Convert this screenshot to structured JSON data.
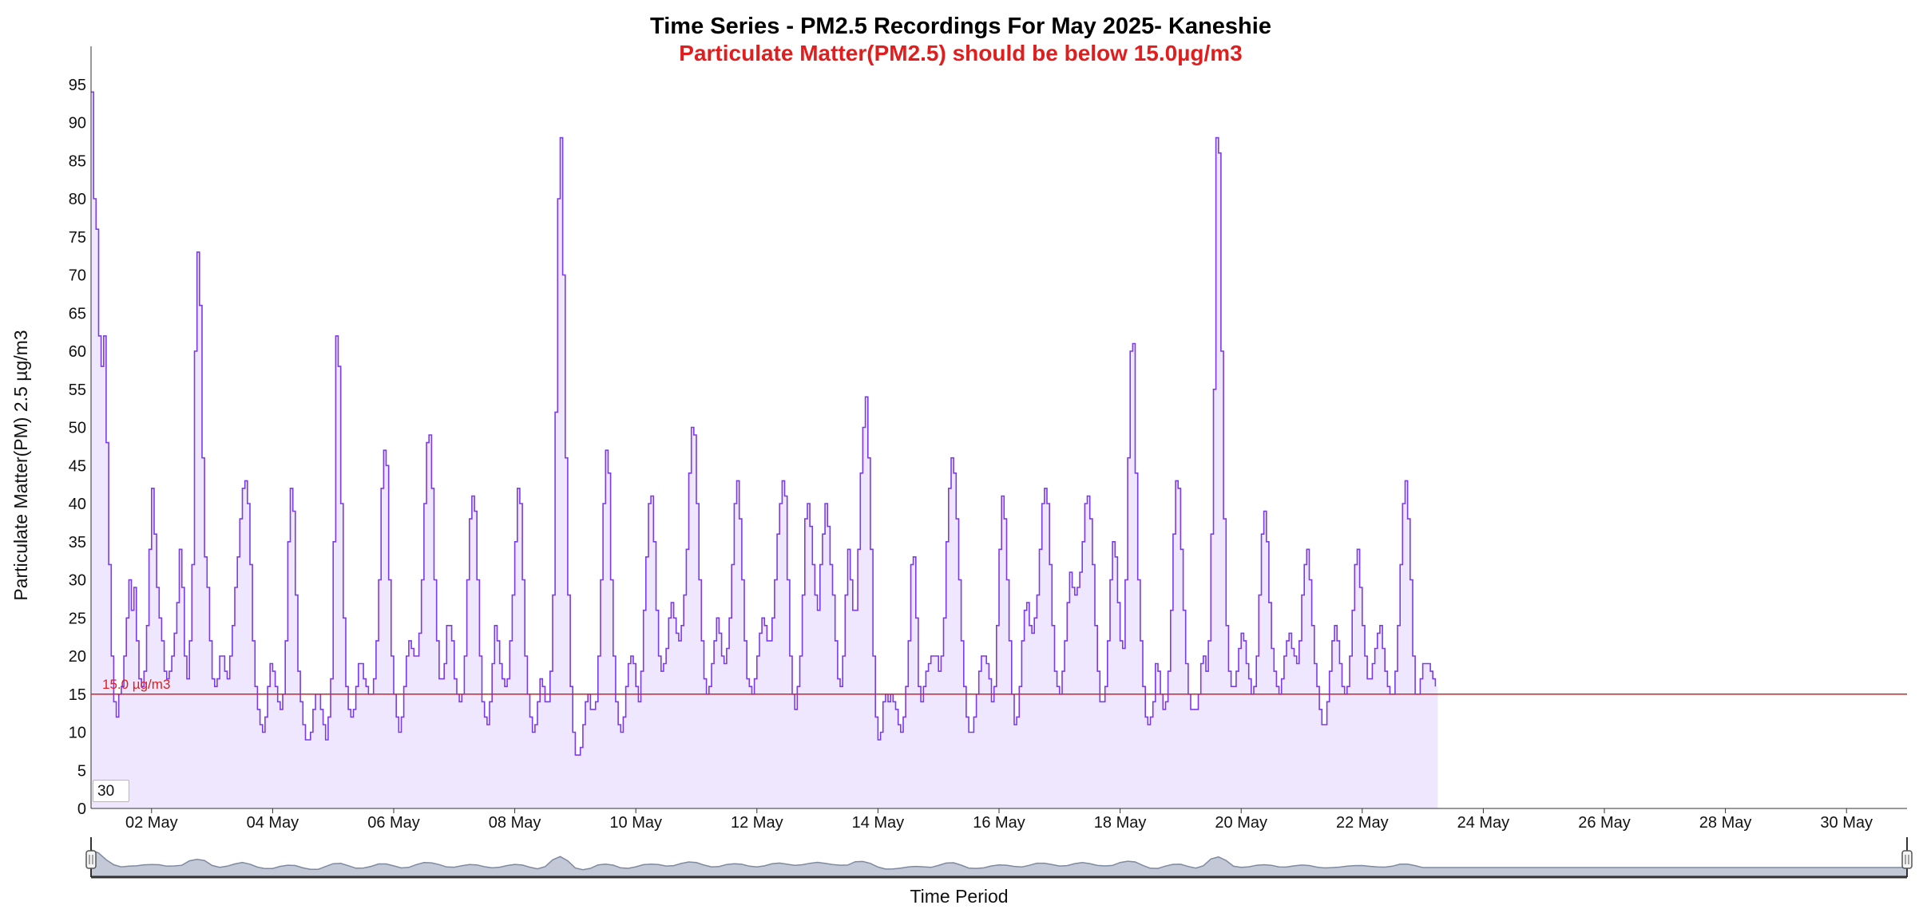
{
  "colors": {
    "series": "#7c3aed",
    "series_fill": "#efe7fe",
    "threshold": "#e11d1d",
    "subtitle": "#e11d1d",
    "navigator_line": "#7f8aa0",
    "navigator_fill": "#c3c9d6",
    "axis": "#333333"
  },
  "roller": {
    "value": "30"
  },
  "chart_data": {
    "type": "line",
    "title": "Time Series - PM2.5 Recordings For May 2025- Kaneshie",
    "subtitle": "Particulate Matter(PM2.5) should be below 15.0µg/m3",
    "ylabel": "Particulate Matter(PM) 2.5 µg/m3",
    "xlabel": "Time Period",
    "ylim": [
      0,
      100
    ],
    "xlim": [
      "2025-05-01 00:00",
      "2025-05-31 00:00"
    ],
    "y_ticks": [
      0,
      5,
      10,
      15,
      20,
      25,
      30,
      35,
      40,
      45,
      50,
      55,
      60,
      65,
      70,
      75,
      80,
      85,
      90,
      95
    ],
    "x_tick_labels": [
      "02 May",
      "04 May",
      "06 May",
      "08 May",
      "10 May",
      "12 May",
      "14 May",
      "16 May",
      "18 May",
      "20 May",
      "22 May",
      "24 May",
      "26 May",
      "28 May",
      "30 May"
    ],
    "x_tick_dates": [
      "2025-05-02",
      "2025-05-04",
      "2025-05-06",
      "2025-05-08",
      "2025-05-10",
      "2025-05-12",
      "2025-05-14",
      "2025-05-16",
      "2025-05-18",
      "2025-05-20",
      "2025-05-22",
      "2025-05-24",
      "2025-05-26",
      "2025-05-28",
      "2025-05-30"
    ],
    "threshold": {
      "value": 15,
      "label": "15.0 µg/m3"
    },
    "grid": false,
    "legend": "none",
    "series": [
      {
        "interval": "1 hour",
        "start": "2025-05-01 00:00",
        "values": [
          94,
          80,
          76,
          62,
          58,
          62,
          48,
          32,
          20,
          14,
          12,
          15,
          16,
          20,
          25,
          30,
          26,
          29,
          22,
          17,
          16,
          18,
          24,
          34,
          42,
          36,
          29,
          25,
          22,
          18,
          17,
          18,
          20,
          23,
          27,
          34,
          29,
          20,
          17,
          22,
          32,
          60,
          73,
          66,
          46,
          33,
          29,
          22,
          17,
          16,
          17,
          20,
          20,
          18,
          17,
          20,
          24,
          29,
          33,
          38,
          42,
          43,
          40,
          32,
          22,
          16,
          13,
          11,
          10,
          12,
          16,
          19,
          18,
          16,
          14,
          13,
          15,
          22,
          35,
          42,
          39,
          28,
          18,
          14,
          11,
          9,
          9,
          10,
          13,
          15,
          15,
          13,
          11,
          9,
          12,
          17,
          35,
          62,
          58,
          40,
          25,
          16,
          13,
          12,
          13,
          16,
          19,
          19,
          17,
          16,
          15,
          15,
          17,
          22,
          30,
          42,
          47,
          45,
          30,
          20,
          15,
          12,
          10,
          12,
          16,
          20,
          22,
          21,
          20,
          20,
          23,
          30,
          40,
          48,
          49,
          42,
          30,
          22,
          17,
          17,
          19,
          24,
          24,
          22,
          17,
          15,
          14,
          15,
          20,
          30,
          38,
          41,
          39,
          30,
          20,
          14,
          12,
          11,
          14,
          19,
          24,
          22,
          19,
          17,
          16,
          17,
          22,
          28,
          35,
          42,
          40,
          30,
          20,
          15,
          12,
          10,
          11,
          14,
          17,
          16,
          14,
          14,
          18,
          28,
          52,
          80,
          88,
          70,
          46,
          28,
          16,
          10,
          7,
          7,
          8,
          11,
          14,
          15,
          13,
          13,
          14,
          20,
          30,
          40,
          47,
          44,
          30,
          20,
          14,
          11,
          10,
          12,
          16,
          19,
          20,
          19,
          16,
          14,
          18,
          26,
          33,
          40,
          41,
          35,
          26,
          20,
          18,
          19,
          21,
          25,
          27,
          25,
          23,
          22,
          24,
          28,
          34,
          44,
          50,
          49,
          40,
          30,
          22,
          17,
          15,
          16,
          19,
          22,
          25,
          23,
          20,
          19,
          21,
          25,
          32,
          40,
          43,
          38,
          30,
          22,
          17,
          16,
          15,
          17,
          20,
          23,
          25,
          24,
          22,
          22,
          25,
          30,
          36,
          40,
          43,
          41,
          30,
          20,
          15,
          13,
          16,
          20,
          28,
          38,
          40,
          37,
          32,
          28,
          26,
          32,
          36,
          40,
          37,
          32,
          28,
          22,
          17,
          16,
          20,
          28,
          34,
          30,
          26,
          26,
          34,
          44,
          50,
          54,
          46,
          34,
          20,
          12,
          9,
          10,
          14,
          15,
          14,
          15,
          14,
          13,
          11,
          10,
          12,
          16,
          22,
          32,
          33,
          25,
          16,
          14,
          16,
          18,
          19,
          20,
          20,
          20,
          18,
          20,
          25,
          35,
          42,
          46,
          44,
          38,
          30,
          22,
          16,
          12,
          10,
          10,
          12,
          15,
          18,
          20,
          20,
          19,
          17,
          14,
          16,
          24,
          34,
          41,
          38,
          30,
          22,
          15,
          11,
          12,
          16,
          22,
          26,
          27,
          24,
          23,
          25,
          28,
          34,
          40,
          42,
          40,
          32,
          24,
          18,
          16,
          15,
          18,
          22,
          27,
          31,
          29,
          28,
          29,
          31,
          35,
          40,
          41,
          38,
          32,
          24,
          18,
          14,
          14,
          16,
          22,
          30,
          35,
          33,
          27,
          22,
          21,
          30,
          46,
          60,
          61,
          44,
          30,
          22,
          16,
          12,
          11,
          12,
          14,
          19,
          18,
          15,
          13,
          14,
          18,
          26,
          36,
          43,
          42,
          34,
          26,
          19,
          15,
          13,
          13,
          13,
          15,
          19,
          20,
          18,
          22,
          36,
          55,
          88,
          86,
          60,
          38,
          24,
          18,
          16,
          16,
          18,
          21,
          23,
          22,
          19,
          17,
          15,
          16,
          20,
          28,
          36,
          39,
          35,
          27,
          21,
          18,
          16,
          15,
          17,
          20,
          22,
          23,
          21,
          20,
          19,
          22,
          28,
          32,
          34,
          30,
          24,
          19,
          16,
          13,
          11,
          11,
          14,
          18,
          22,
          24,
          22,
          19,
          16,
          15,
          16,
          20,
          26,
          32,
          34,
          29,
          24,
          20,
          17,
          17,
          19,
          21,
          23,
          24,
          21,
          18,
          16,
          15,
          15,
          18,
          24,
          32,
          40,
          43,
          38,
          30,
          20,
          15,
          15,
          17,
          19,
          19,
          19,
          18,
          17,
          16
        ]
      }
    ]
  }
}
